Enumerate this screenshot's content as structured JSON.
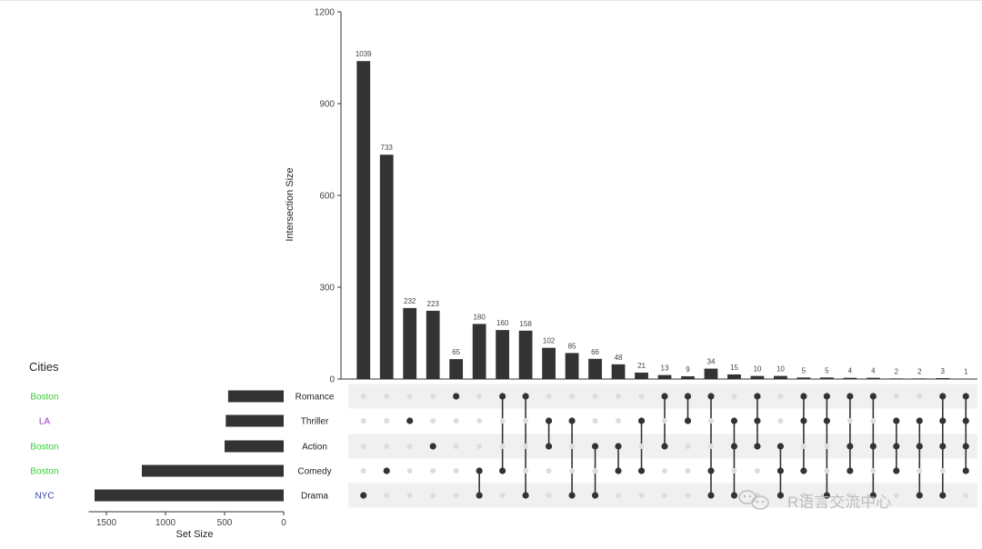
{
  "chart_data": {
    "type": "bar",
    "ylabel": "Intersection Size",
    "ylim": [
      0,
      1200
    ],
    "yticks": [
      0,
      300,
      600,
      900,
      1200
    ],
    "sets": [
      "Romance",
      "Thriller",
      "Action",
      "Comedy",
      "Drama"
    ],
    "set_sizes": [
      470,
      490,
      500,
      1200,
      1600
    ],
    "set_size_xlabel": "Set Size",
    "set_size_ticks": [
      1500,
      1000,
      500,
      0
    ],
    "set_size_xlim": [
      0,
      1650
    ],
    "intersections": [
      {
        "value": 1039,
        "sets": [
          "Drama"
        ]
      },
      {
        "value": 733,
        "sets": [
          "Comedy"
        ]
      },
      {
        "value": 232,
        "sets": [
          "Thriller"
        ]
      },
      {
        "value": 223,
        "sets": [
          "Action"
        ]
      },
      {
        "value": 65,
        "sets": [
          "Romance"
        ]
      },
      {
        "value": 180,
        "sets": [
          "Comedy",
          "Drama"
        ]
      },
      {
        "value": 160,
        "sets": [
          "Romance",
          "Comedy"
        ]
      },
      {
        "value": 158,
        "sets": [
          "Romance",
          "Drama"
        ]
      },
      {
        "value": 102,
        "sets": [
          "Thriller",
          "Action"
        ]
      },
      {
        "value": 85,
        "sets": [
          "Thriller",
          "Drama"
        ]
      },
      {
        "value": 66,
        "sets": [
          "Action",
          "Drama"
        ]
      },
      {
        "value": 48,
        "sets": [
          "Action",
          "Comedy"
        ]
      },
      {
        "value": 21,
        "sets": [
          "Thriller",
          "Comedy"
        ]
      },
      {
        "value": 13,
        "sets": [
          "Romance",
          "Action"
        ]
      },
      {
        "value": 9,
        "sets": [
          "Romance",
          "Thriller"
        ]
      },
      {
        "value": 34,
        "sets": [
          "Romance",
          "Comedy",
          "Drama"
        ]
      },
      {
        "value": 15,
        "sets": [
          "Thriller",
          "Action",
          "Drama"
        ]
      },
      {
        "value": 10,
        "sets": [
          "Romance",
          "Thriller",
          "Action"
        ]
      },
      {
        "value": 10,
        "sets": [
          "Action",
          "Comedy",
          "Drama"
        ]
      },
      {
        "value": 5,
        "sets": [
          "Romance",
          "Thriller",
          "Comedy"
        ]
      },
      {
        "value": 5,
        "sets": [
          "Romance",
          "Thriller",
          "Drama"
        ]
      },
      {
        "value": 4,
        "sets": [
          "Romance",
          "Action",
          "Comedy"
        ]
      },
      {
        "value": 4,
        "sets": [
          "Romance",
          "Action",
          "Drama"
        ]
      },
      {
        "value": 2,
        "sets": [
          "Thriller",
          "Action",
          "Comedy"
        ]
      },
      {
        "value": 2,
        "sets": [
          "Thriller",
          "Action",
          "Drama"
        ]
      },
      {
        "value": 3,
        "sets": [
          "Romance",
          "Thriller",
          "Action",
          "Drama"
        ]
      },
      {
        "value": 1,
        "sets": [
          "Romance",
          "Thriller",
          "Action",
          "Comedy"
        ]
      }
    ]
  },
  "metadata_panel": {
    "title": "Cities",
    "labels": [
      {
        "text": "Boston",
        "color": "#33cc33"
      },
      {
        "text": "LA",
        "color": "#9933cc"
      },
      {
        "text": "Boston",
        "color": "#33cc33"
      },
      {
        "text": "Boston",
        "color": "#33cc33"
      },
      {
        "text": "NYC",
        "color": "#3344aa"
      }
    ]
  },
  "watermark": {
    "text": "R语言交流中心",
    "icon": "wechat-icon"
  },
  "colors": {
    "bar": "#333333",
    "dot_active": "#333333",
    "dot_inactive": "#dddddd",
    "stripe": "#f0f0f0"
  }
}
